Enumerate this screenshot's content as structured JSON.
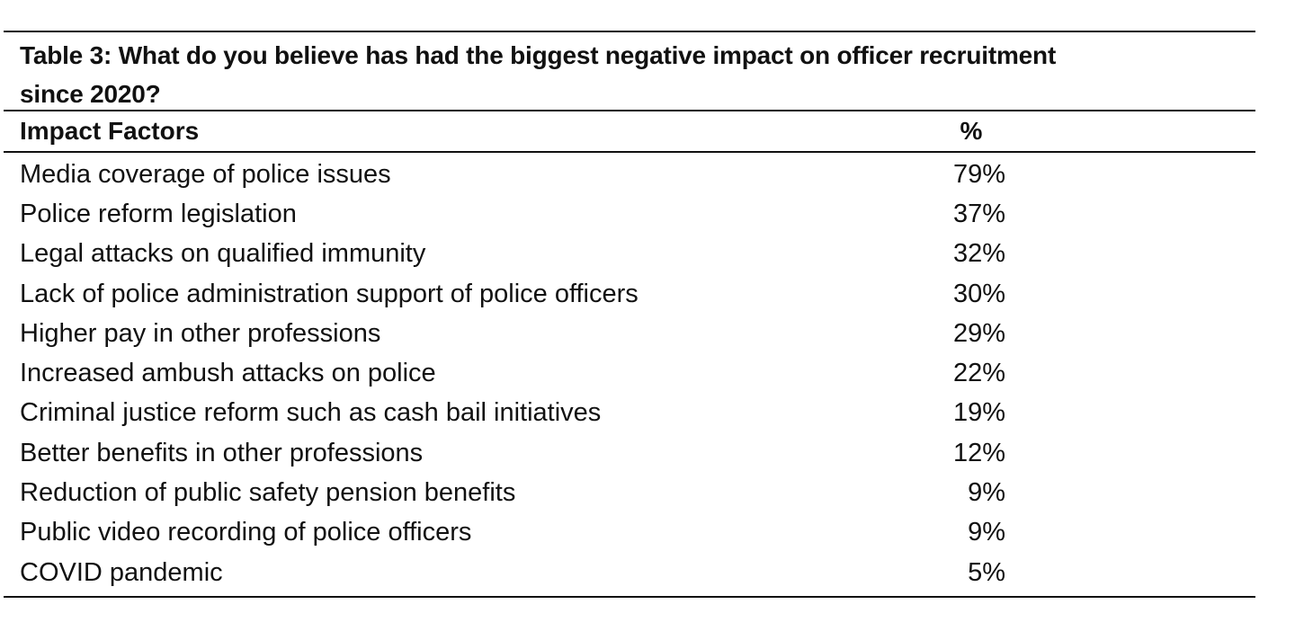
{
  "table": {
    "title": "Table 3: What do you believe has had the biggest negative impact on officer recruitment since 2020?",
    "title_line1": "Table 3: What do you believe has had the biggest negative impact on officer recruitment",
    "title_line2": "since 2020?",
    "columns": [
      "Impact Factors",
      "%"
    ],
    "rows": [
      {
        "factor": "Media coverage of police issues",
        "percent": "79%"
      },
      {
        "factor": "Police reform legislation",
        "percent": "37%"
      },
      {
        "factor": "Legal attacks on qualified immunity",
        "percent": "32%"
      },
      {
        "factor": "Lack of police administration support of police officers",
        "percent": "30%"
      },
      {
        "factor": "Higher pay in other professions",
        "percent": "29%"
      },
      {
        "factor": "Increased ambush attacks on police",
        "percent": "22%"
      },
      {
        "factor": "Criminal justice reform such as cash bail initiatives",
        "percent": "19%"
      },
      {
        "factor": "Better benefits in other professions",
        "percent": "12%"
      },
      {
        "factor": "Reduction of public safety pension benefits",
        "percent": "9%"
      },
      {
        "factor": "Public video recording of police officers",
        "percent": "9%"
      },
      {
        "factor": "COVID pandemic",
        "percent": "5%"
      }
    ]
  }
}
